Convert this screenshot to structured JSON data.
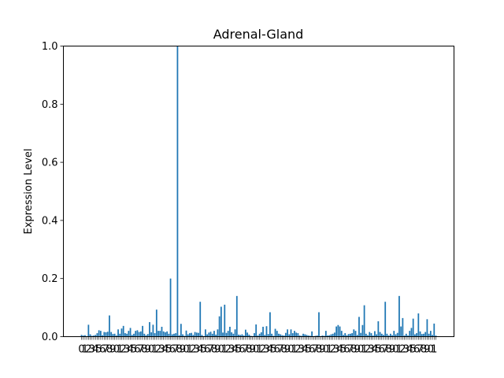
{
  "chart_data": {
    "type": "bar",
    "title": "Adrenal-Gland",
    "xlabel": "",
    "ylabel": "Expression Level",
    "ylim": [
      0,
      1.0
    ],
    "yticks": [
      "0.0",
      "0.2",
      "0.4",
      "0.6",
      "0.8",
      "1.0"
    ],
    "bar_color": "#1f77b4",
    "grid": false,
    "legend": "none",
    "xtick_labels_legible": [
      "0",
      "1",
      "2",
      "3",
      "4",
      "5",
      "6",
      "7",
      "8",
      "9"
    ],
    "values": [
      0.006,
      0.004,
      0.005,
      0.002,
      0.041,
      0.008,
      0.003,
      0.004,
      0.006,
      0.012,
      0.022,
      0.02,
      0.005,
      0.016,
      0.015,
      0.017,
      0.073,
      0.016,
      0.009,
      0.01,
      0.004,
      0.025,
      0.01,
      0.028,
      0.037,
      0.012,
      0.01,
      0.02,
      0.03,
      0.006,
      0.01,
      0.02,
      0.022,
      0.016,
      0.018,
      0.037,
      0.01,
      0.005,
      0.009,
      0.05,
      0.015,
      0.041,
      0.012,
      0.093,
      0.02,
      0.02,
      0.034,
      0.018,
      0.015,
      0.018,
      0.01,
      0.2,
      0.008,
      0.01,
      0.012,
      1.0,
      0.005,
      0.044,
      0.008,
      0.003,
      0.021,
      0.008,
      0.012,
      0.013,
      0.006,
      0.016,
      0.014,
      0.013,
      0.12,
      0.006,
      0.002,
      0.025,
      0.008,
      0.014,
      0.017,
      0.01,
      0.02,
      0.007,
      0.025,
      0.07,
      0.103,
      0.014,
      0.11,
      0.013,
      0.02,
      0.034,
      0.015,
      0.01,
      0.025,
      0.14,
      0.007,
      0.006,
      0.008,
      0.004,
      0.024,
      0.014,
      0.007,
      0.003,
      0.002,
      0.012,
      0.042,
      0.004,
      0.01,
      0.015,
      0.034,
      0.006,
      0.036,
      0.009,
      0.084,
      0.01,
      0.003,
      0.027,
      0.02,
      0.01,
      0.008,
      0.005,
      0.004,
      0.013,
      0.025,
      0.008,
      0.025,
      0.012,
      0.02,
      0.014,
      0.012,
      0.004,
      0.003,
      0.01,
      0.008,
      0.006,
      0.004,
      0.003,
      0.018,
      0.002,
      0.003,
      0.004,
      0.084,
      0.002,
      0.004,
      0.003,
      0.02,
      0.004,
      0.005,
      0.008,
      0.01,
      0.014,
      0.035,
      0.04,
      0.035,
      0.02,
      0.006,
      0.012,
      0.005,
      0.009,
      0.01,
      0.012,
      0.025,
      0.02,
      0.006,
      0.068,
      0.013,
      0.04,
      0.108,
      0.01,
      0.005,
      0.016,
      0.012,
      0.004,
      0.019,
      0.008,
      0.053,
      0.016,
      0.01,
      0.006,
      0.12,
      0.01,
      0.004,
      0.01,
      0.005,
      0.02,
      0.008,
      0.013,
      0.14,
      0.035,
      0.064,
      0.004,
      0.01,
      0.004,
      0.02,
      0.03,
      0.062,
      0.008,
      0.012,
      0.08,
      0.018,
      0.009,
      0.01,
      0.016,
      0.06,
      0.01,
      0.02,
      0.006,
      0.045,
      0.004
    ]
  }
}
